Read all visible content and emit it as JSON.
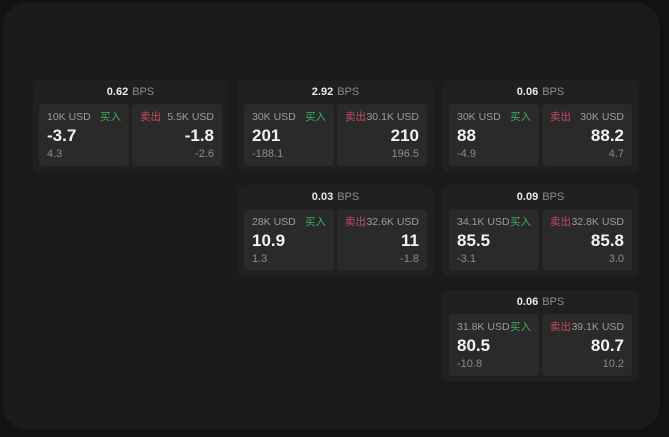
{
  "labels": {
    "bps_unit": "BPS",
    "buy": "买入",
    "sell": "卖出"
  },
  "colors": {
    "buy_green": "#3fae5a",
    "sell_red": "#c64b5d",
    "surface": "#1b1b1c",
    "card": "#202021",
    "panel": "#2a2a2b"
  },
  "cards": [
    {
      "bps": "0.62",
      "buy": {
        "amount": "10K USD",
        "value": "-3.7",
        "delta": "4.3"
      },
      "sell": {
        "amount": "5.5K USD",
        "value": "-1.8",
        "delta": "-2.6"
      }
    },
    {
      "bps": "2.92",
      "buy": {
        "amount": "30K USD",
        "value": "201",
        "delta": "-188.1"
      },
      "sell": {
        "amount": "30.1K USD",
        "value": "210",
        "delta": "196.5"
      }
    },
    {
      "bps": "0.06",
      "buy": {
        "amount": "30K USD",
        "value": "88",
        "delta": "-4.9"
      },
      "sell": {
        "amount": "30K USD",
        "value": "88.2",
        "delta": "4.7"
      }
    },
    {
      "bps": "0.03",
      "buy": {
        "amount": "28K USD",
        "value": "10.9",
        "delta": "1.3"
      },
      "sell": {
        "amount": "32.6K USD",
        "value": "11",
        "delta": "-1.8"
      }
    },
    {
      "bps": "0.09",
      "buy": {
        "amount": "34.1K USD",
        "value": "85.5",
        "delta": "-3.1"
      },
      "sell": {
        "amount": "32.8K USD",
        "value": "85.8",
        "delta": "3.0"
      }
    },
    {
      "bps": "0.06",
      "buy": {
        "amount": "31.8K USD",
        "value": "80.5",
        "delta": "-10.8"
      },
      "sell": {
        "amount": "39.1K USD",
        "value": "80.7",
        "delta": "10.2"
      }
    }
  ]
}
